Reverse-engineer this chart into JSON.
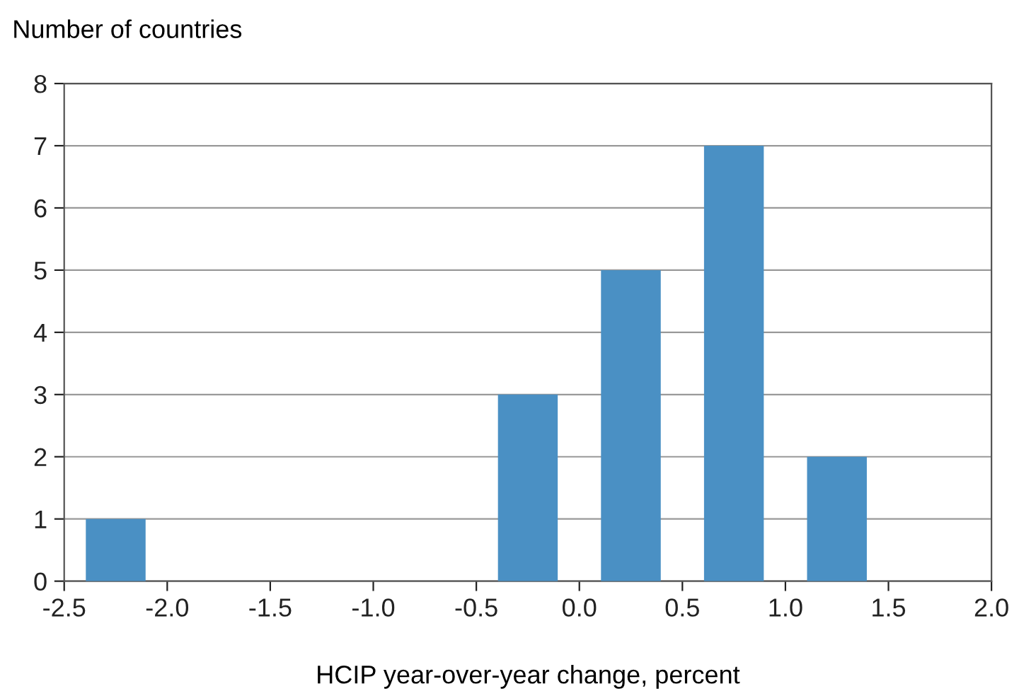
{
  "chart_data": {
    "type": "bar",
    "ylabel": "Number of countries",
    "xlabel": "HCIP year-over-year change, percent",
    "x": [
      -2.25,
      -0.25,
      0.25,
      0.75,
      1.25
    ],
    "values": [
      1,
      3,
      5,
      7,
      2
    ],
    "color": "#4a90c4",
    "xlim": [
      -2.5,
      2.0
    ],
    "xticks": [
      {
        "value": -2.5,
        "label": "-2.5"
      },
      {
        "value": -2.0,
        "label": "-2.0"
      },
      {
        "value": -1.5,
        "label": "-1.5"
      },
      {
        "value": -1.0,
        "label": "-1.0"
      },
      {
        "value": -0.5,
        "label": "-0.5"
      },
      {
        "value": 0.0,
        "label": "0.0"
      },
      {
        "value": 0.5,
        "label": "0.5"
      },
      {
        "value": 1.0,
        "label": "1.0"
      },
      {
        "value": 1.5,
        "label": "1.5"
      },
      {
        "value": 2.0,
        "label": "2.0"
      }
    ],
    "ylim": [
      0,
      8
    ],
    "yticks": [
      0,
      1,
      2,
      3,
      4,
      5,
      6,
      7,
      8
    ],
    "grid": "y"
  }
}
